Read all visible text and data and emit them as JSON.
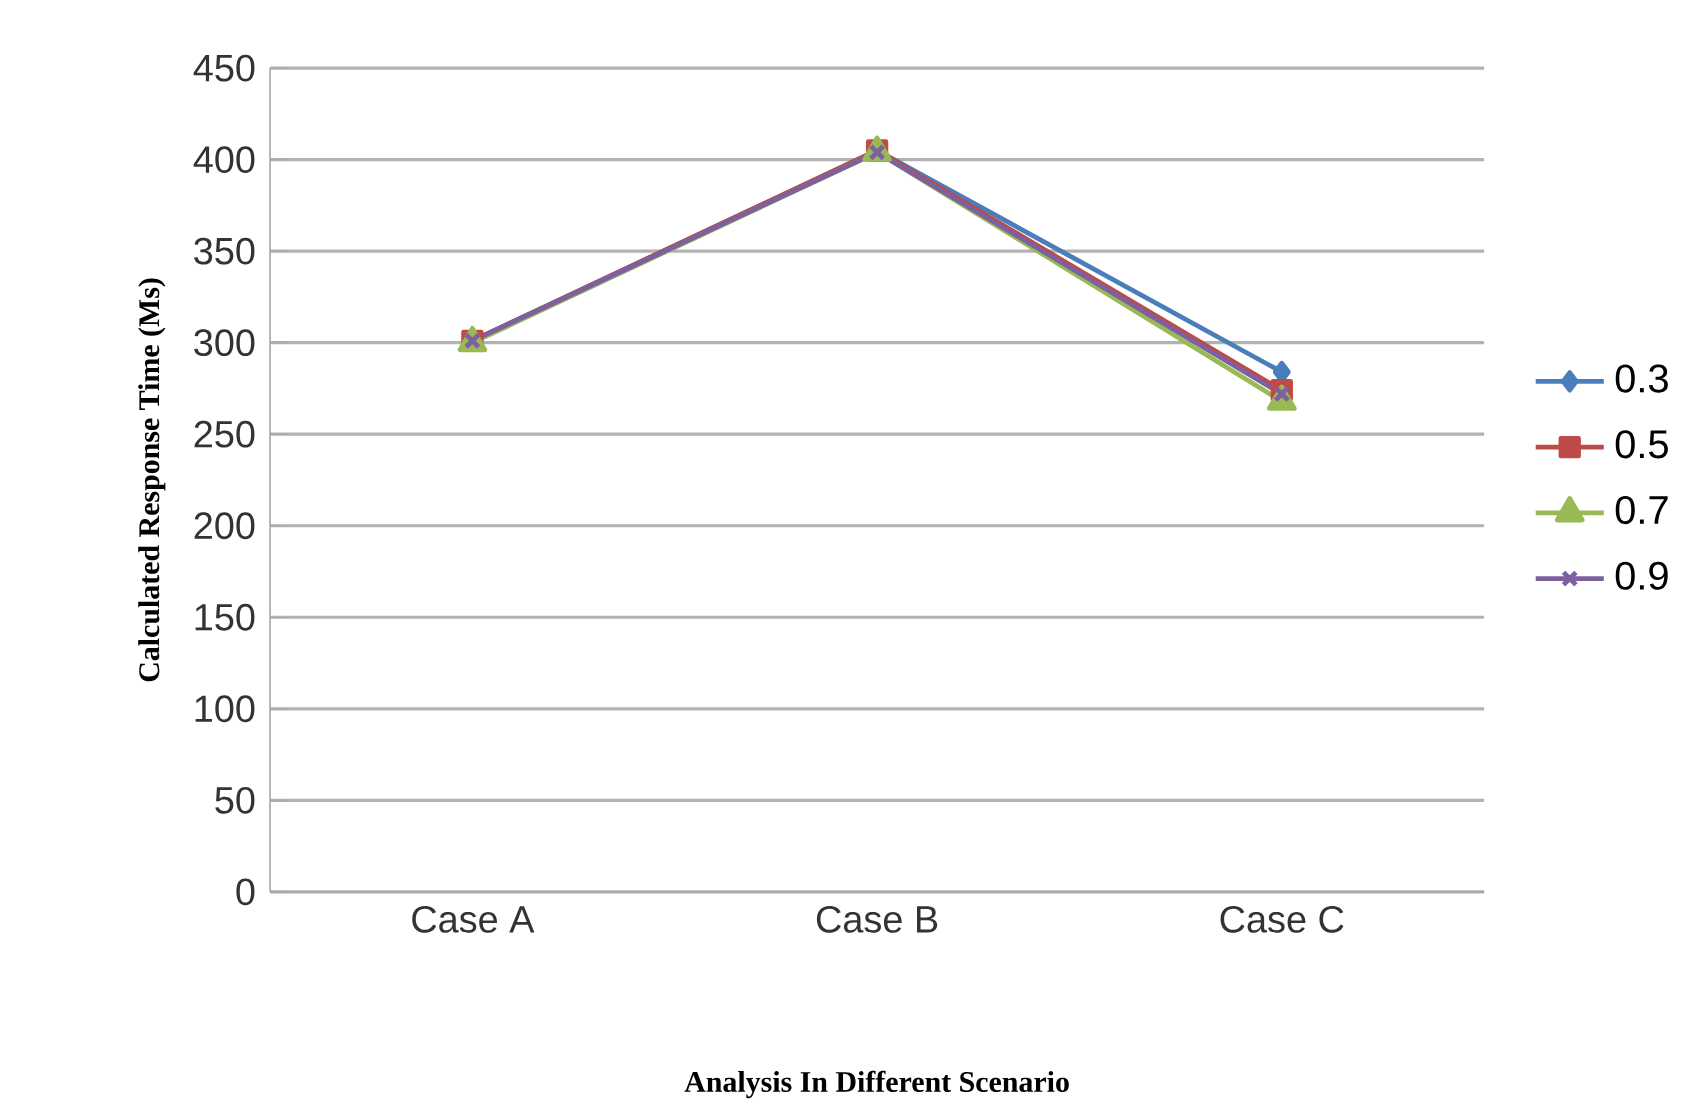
{
  "chart_data": {
    "type": "line",
    "xlabel": "Analysis In Different Scenario",
    "ylabel": "Calculated Response Time (Ms)",
    "categories": [
      "Case A",
      "Case B",
      "Case C"
    ],
    "series": [
      {
        "name": "0.3",
        "color": "#4a7ebb",
        "marker": "diamond",
        "values": [
          301,
          405,
          284
        ]
      },
      {
        "name": "0.5",
        "color": "#be4b48",
        "marker": "square",
        "values": [
          301,
          405,
          274
        ]
      },
      {
        "name": "0.7",
        "color": "#98b954",
        "marker": "triangle",
        "values": [
          300,
          404,
          268
        ]
      },
      {
        "name": "0.9",
        "color": "#7d60a0",
        "marker": "cross",
        "values": [
          301,
          404,
          272
        ]
      }
    ],
    "ylim": [
      0,
      450
    ],
    "yticks": [
      0,
      50,
      100,
      150,
      200,
      250,
      300,
      350,
      400,
      450
    ],
    "grid": "y",
    "legend": "right",
    "line_style": "solid"
  }
}
